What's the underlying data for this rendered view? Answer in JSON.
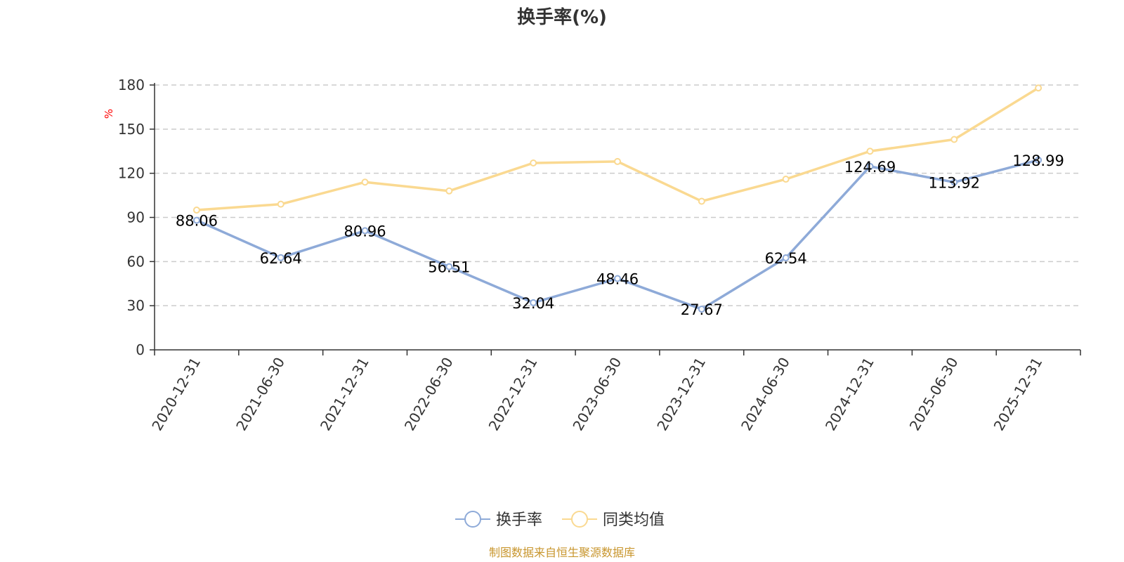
{
  "chart_data": {
    "type": "line",
    "title": "换手率(%)",
    "ylabel": "%",
    "xlabel": "",
    "ylim": [
      0,
      180
    ],
    "yticks": [
      0,
      30,
      60,
      90,
      120,
      150,
      180
    ],
    "grid": true,
    "legend_position": "bottom-center",
    "categories": [
      "2020-12-31",
      "2021-06-30",
      "2021-12-31",
      "2022-06-30",
      "2022-12-31",
      "2023-06-30",
      "2023-12-31",
      "2024-06-30",
      "2024-12-31",
      "2025-06-30",
      "2025-12-31"
    ],
    "series": [
      {
        "name": "换手率",
        "color": "#8eaad8",
        "show_labels": true,
        "values": [
          88.06,
          62.64,
          80.96,
          56.51,
          32.04,
          48.46,
          27.67,
          62.54,
          124.69,
          113.92,
          128.99
        ]
      },
      {
        "name": "同类均值",
        "color": "#fad991",
        "show_labels": false,
        "values": [
          95,
          99,
          114,
          108,
          127,
          128,
          101,
          116,
          135,
          143,
          178
        ]
      }
    ]
  },
  "source_text": "制图数据来自恒生聚源数据库",
  "source_color": "#c8962e"
}
